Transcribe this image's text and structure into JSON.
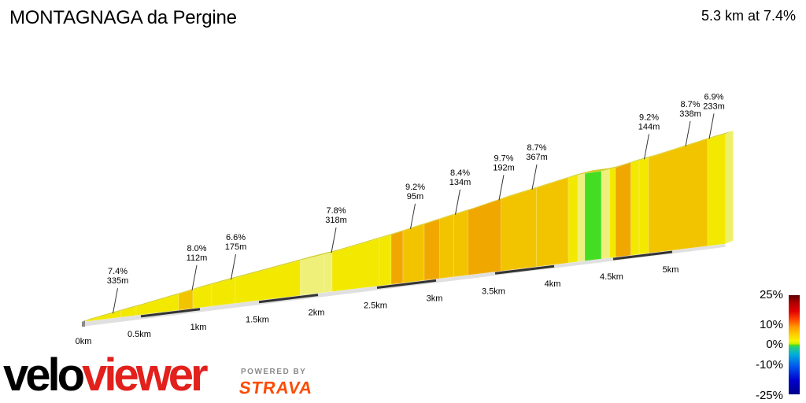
{
  "header": {
    "title": "MONTAGNAGA da Pergine",
    "summary": "5.3 km at 7.4%"
  },
  "branding": {
    "logo_part1": "velo",
    "logo_part2": "viewer",
    "powered_by": "POWERED BY",
    "strava": "STRAVA"
  },
  "colors": {
    "yellow": "#f2e800",
    "yellow_light": "#eef07a",
    "amber": "#f2c400",
    "orange": "#f0a800",
    "green": "#44dd22",
    "top_edge": "#c8c400",
    "base": "#e0e0e0"
  },
  "scale_labels": [
    "25%",
    "10%",
    "0%",
    "-10%",
    "-25%"
  ],
  "chart_data": {
    "type": "area",
    "title": "MONTAGNAGA da Pergine",
    "total_distance_km": 5.3,
    "average_gradient_pct": 7.4,
    "x_ticks": [
      "0km",
      "0.5km",
      "1km",
      "1.5km",
      "2km",
      "2.5km",
      "3km",
      "3.5km",
      "4km",
      "4.5km",
      "5km"
    ],
    "segment_labels": [
      {
        "gradient": "7.4%",
        "length": "335m",
        "start_km": 0.0
      },
      {
        "gradient": "8.0%",
        "length": "112m",
        "start_km": 0.67
      },
      {
        "gradient": "6.6%",
        "length": "175m",
        "start_km": 1.0
      },
      {
        "gradient": "7.8%",
        "length": "318m",
        "start_km": 1.85
      },
      {
        "gradient": "9.2%",
        "length": "95m",
        "start_km": 2.52
      },
      {
        "gradient": "8.4%",
        "length": "134m",
        "start_km": 2.9
      },
      {
        "gradient": "9.7%",
        "length": "192m",
        "start_km": 3.27
      },
      {
        "gradient": "8.7%",
        "length": "367m",
        "start_km": 3.55
      },
      {
        "gradient": "9.2%",
        "length": "144m",
        "start_km": 4.5
      },
      {
        "gradient": "8.7%",
        "length": "338m",
        "start_km": 4.85
      },
      {
        "gradient": "6.9%",
        "length": "233m",
        "start_km": 5.05
      }
    ],
    "bands": [
      {
        "from_km": 0.0,
        "to_km": 0.33,
        "grade": 7.4
      },
      {
        "from_km": 0.33,
        "to_km": 0.46,
        "grade": 6.8
      },
      {
        "from_km": 0.46,
        "to_km": 0.82,
        "grade": 7.6
      },
      {
        "from_km": 0.82,
        "to_km": 0.94,
        "grade": 8.3
      },
      {
        "from_km": 0.94,
        "to_km": 1.1,
        "grade": 7.2
      },
      {
        "from_km": 1.1,
        "to_km": 1.3,
        "grade": 6.3
      },
      {
        "from_km": 1.3,
        "to_km": 1.85,
        "grade": 6.6
      },
      {
        "from_km": 1.85,
        "to_km": 2.05,
        "grade": 6.0
      },
      {
        "from_km": 2.05,
        "to_km": 2.12,
        "grade": 5.5
      },
      {
        "from_km": 2.12,
        "to_km": 2.52,
        "grade": 7.8
      },
      {
        "from_km": 2.52,
        "to_km": 2.62,
        "grade": 7.8
      },
      {
        "from_km": 2.62,
        "to_km": 2.72,
        "grade": 9.2
      },
      {
        "from_km": 2.72,
        "to_km": 2.9,
        "grade": 8.6
      },
      {
        "from_km": 2.9,
        "to_km": 3.03,
        "grade": 9.0
      },
      {
        "from_km": 3.03,
        "to_km": 3.15,
        "grade": 8.2
      },
      {
        "from_km": 3.15,
        "to_km": 3.27,
        "grade": 8.6
      },
      {
        "from_km": 3.27,
        "to_km": 3.55,
        "grade": 9.7
      },
      {
        "from_km": 3.55,
        "to_km": 3.85,
        "grade": 8.5
      },
      {
        "from_km": 3.85,
        "to_km": 4.12,
        "grade": 8.7
      },
      {
        "from_km": 4.12,
        "to_km": 4.2,
        "grade": 6.5
      },
      {
        "from_km": 4.2,
        "to_km": 4.26,
        "grade": 5.5
      },
      {
        "from_km": 4.26,
        "to_km": 4.4,
        "grade": 0.5
      },
      {
        "from_km": 4.4,
        "to_km": 4.47,
        "grade": 5.0
      },
      {
        "from_km": 4.47,
        "to_km": 4.52,
        "grade": 7.0
      },
      {
        "from_km": 4.52,
        "to_km": 4.65,
        "grade": 9.2
      },
      {
        "from_km": 4.65,
        "to_km": 4.72,
        "grade": 7.2
      },
      {
        "from_km": 4.72,
        "to_km": 4.8,
        "grade": 6.5
      },
      {
        "from_km": 4.8,
        "to_km": 5.3,
        "grade": 8.7
      },
      {
        "from_km": 5.3,
        "to_km": 5.45,
        "grade": 6.9
      }
    ]
  }
}
